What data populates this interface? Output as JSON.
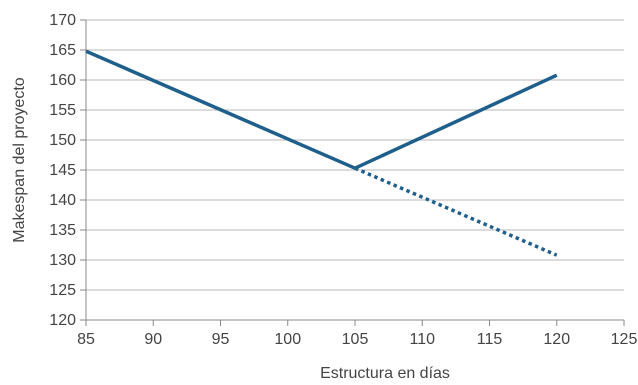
{
  "chart_data": {
    "type": "line",
    "xlabel": "Estructura en días",
    "ylabel": "Makespan del proyecto",
    "xlim": [
      85,
      125
    ],
    "ylim": [
      120,
      170
    ],
    "x_ticks": [
      85,
      90,
      95,
      100,
      105,
      110,
      115,
      120,
      125
    ],
    "y_ticks": [
      120,
      125,
      130,
      135,
      140,
      145,
      150,
      155,
      160,
      165,
      170
    ],
    "grid": "horizontal",
    "series": [
      {
        "style": "solid",
        "color": "#1f5f8b",
        "x": [
          85,
          105
        ],
        "y": [
          164.8,
          145.3
        ]
      },
      {
        "style": "solid",
        "color": "#1f5f8b",
        "x": [
          105,
          120
        ],
        "y": [
          145.3,
          160.8
        ]
      },
      {
        "style": "dotted",
        "color": "#1f5f8b",
        "x": [
          105,
          120
        ],
        "y": [
          145.3,
          130.8
        ]
      }
    ]
  }
}
